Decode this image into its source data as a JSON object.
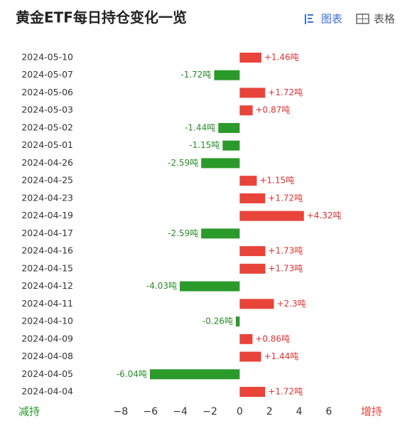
{
  "title": "黄金ETF每日持仓变化一览",
  "tabs": [
    "图表",
    "表格"
  ],
  "chart_data": {
    "type": "bar",
    "orientation": "horizontal",
    "categories": [
      "2024-05-10",
      "2024-05-07",
      "2024-05-06",
      "2024-05-03",
      "2024-05-02",
      "2024-05-01",
      "2024-04-26",
      "2024-04-25",
      "2024-04-23",
      "2024-04-19",
      "2024-04-17",
      "2024-04-16",
      "2024-04-15",
      "2024-04-12",
      "2024-04-11",
      "2024-04-10",
      "2024-04-09",
      "2024-04-08",
      "2024-04-05",
      "2024-04-04"
    ],
    "values": [
      1.46,
      -1.72,
      1.72,
      0.87,
      -1.44,
      -1.15,
      -2.59,
      1.15,
      1.72,
      4.32,
      -2.59,
      1.73,
      1.73,
      -4.03,
      2.3,
      -0.26,
      0.86,
      1.44,
      -6.04,
      1.72
    ],
    "value_labels": [
      "+1.46吨",
      "-1.72吨",
      "+1.72吨",
      "+0.87吨",
      "-1.44吨",
      "-1.15吨",
      "-2.59吨",
      "+1.15吨",
      "+1.72吨",
      "+4.32吨",
      "-2.59吨",
      "+1.73吨",
      "+1.73吨",
      "-4.03吨",
      "+2.3吨",
      "-0.26吨",
      "+0.86吨",
      "+1.44吨",
      "-6.04吨",
      "+1.72吨"
    ],
    "positive_color": "#e8443a",
    "negative_color": "#2a9a2a",
    "xlim": [
      -8,
      6
    ],
    "xticks": [
      {
        "value": -8,
        "label": "−8"
      },
      {
        "value": -6,
        "label": "−6"
      },
      {
        "value": -4,
        "label": "−4"
      },
      {
        "value": -2,
        "label": "−2"
      },
      0,
      2,
      4,
      6
    ],
    "x_label_left": "减持",
    "x_label_right": "增持"
  }
}
